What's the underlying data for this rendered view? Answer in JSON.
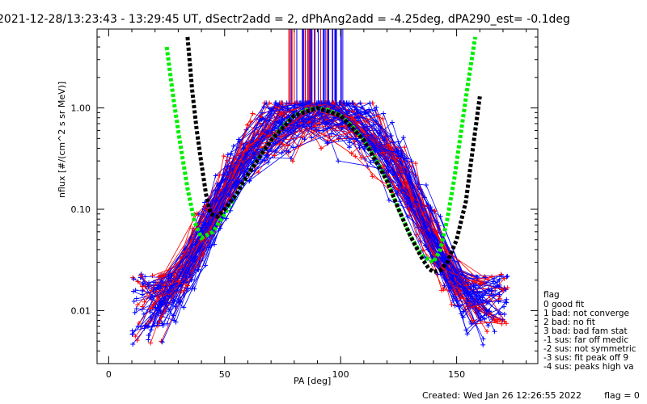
{
  "chart_data": {
    "type": "line",
    "title": "2021-12-28/13:23:43 - 13:29:45 UT, dSectr2add = 2, dPhAng2add = -4.25deg, dPA290_est=  -0.1deg",
    "xlabel": "PA [deg]",
    "ylabel": "nflux [#/(cm^2 s sr MeV)]",
    "xlim": [
      -5,
      185
    ],
    "ylim": [
      0.003,
      6
    ],
    "y_scale": "log",
    "x_ticks": [
      0,
      50,
      100,
      150
    ],
    "y_ticks": [
      {
        "value": 1.0,
        "label": "1.00"
      },
      {
        "value": 0.1,
        "label": "0.10"
      },
      {
        "value": 0.01,
        "label": "0.01"
      }
    ],
    "colors": {
      "red": "#ff0000",
      "blue": "#0000ff",
      "green": "#00ee00",
      "black": "#000000"
    },
    "series": [
      {
        "color": "green",
        "style": "thick-dashed",
        "x": [
          25,
          28,
          31,
          34,
          37,
          40,
          45,
          50,
          55,
          60,
          65,
          70,
          75,
          80,
          85,
          90,
          95,
          100,
          105,
          110,
          115,
          120,
          125,
          130,
          135,
          140,
          143,
          146,
          149,
          152,
          155,
          158
        ],
        "y": [
          4.0,
          1.2,
          0.42,
          0.16,
          0.075,
          0.052,
          0.06,
          0.09,
          0.14,
          0.22,
          0.33,
          0.48,
          0.66,
          0.84,
          0.95,
          1.0,
          0.95,
          0.84,
          0.66,
          0.48,
          0.32,
          0.19,
          0.1,
          0.055,
          0.035,
          0.03,
          0.04,
          0.08,
          0.2,
          0.6,
          1.8,
          5.0
        ]
      },
      {
        "color": "black",
        "style": "thick-dashed",
        "x": [
          34,
          36,
          38,
          40,
          42,
          44,
          47,
          50,
          55,
          60,
          70,
          80,
          90,
          100,
          110,
          120,
          125,
          130,
          135,
          138,
          140,
          143,
          146,
          150,
          154,
          157,
          160
        ],
        "y": [
          5.0,
          1.5,
          0.6,
          0.28,
          0.14,
          0.09,
          0.085,
          0.1,
          0.14,
          0.22,
          0.48,
          0.84,
          1.0,
          0.84,
          0.48,
          0.19,
          0.1,
          0.055,
          0.033,
          0.026,
          0.024,
          0.025,
          0.03,
          0.05,
          0.12,
          0.4,
          1.3
        ]
      }
    ]
  },
  "legend": {
    "title": "flag",
    "items": [
      " 0 good fit",
      " 1 bad: not converge",
      " 2 bad: no fit",
      " 3 bad: bad fam stat",
      "-1 sus: far off medic",
      "-2 sus: not symmetric",
      "-3 sus: fit peak off 9",
      "-4 sus: peaks high va"
    ]
  },
  "footer": {
    "created": "Created: Wed Jan 26 12:26:55 2022",
    "flag": "flag = 0"
  }
}
